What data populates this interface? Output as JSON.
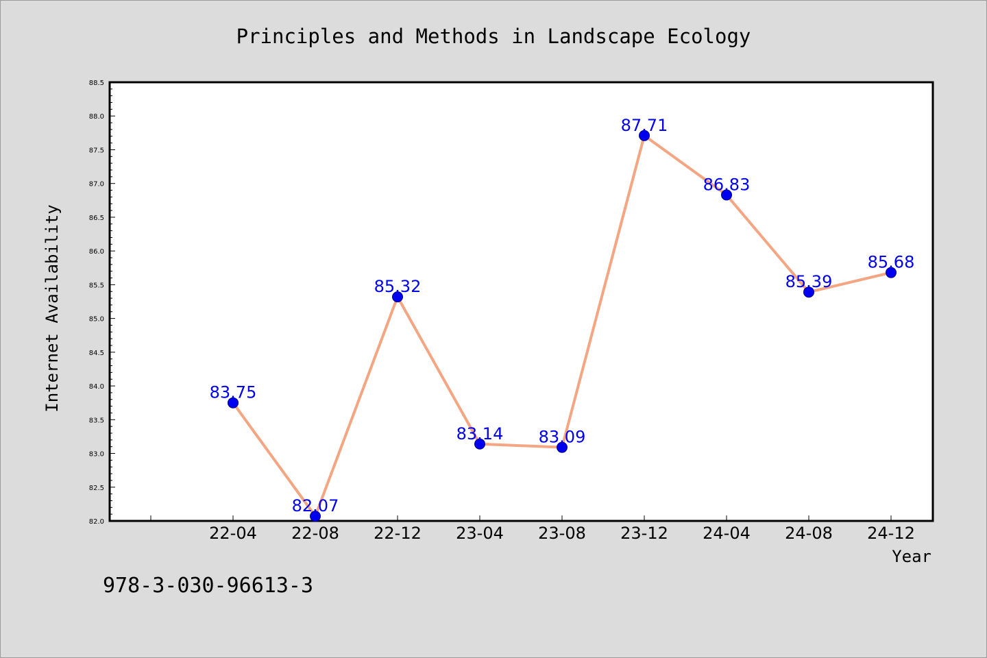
{
  "footer_code": "978-3-030-96613-3",
  "colors": {
    "background": "#dcdcdc",
    "plot_background": "#ffffff",
    "line": "#f4a582",
    "marker": "#0000ee",
    "data_label": "#0000ee"
  },
  "chart_data": {
    "type": "line",
    "title": "Principles and Methods in Landscape Ecology",
    "xlabel": "Year",
    "ylabel": "Internet Availability",
    "categories": [
      "22-04",
      "22-08",
      "22-12",
      "23-04",
      "23-08",
      "23-12",
      "24-04",
      "24-08",
      "24-12"
    ],
    "series": [
      {
        "values": [
          83.75,
          82.07,
          85.32,
          83.14,
          83.09,
          87.71,
          86.83,
          85.39,
          85.68
        ],
        "labels": [
          "83.75",
          "82.07",
          "85.32",
          "83.14",
          "83.09",
          "87.71",
          "86.83",
          "85.39",
          "85.68"
        ]
      }
    ],
    "ylim": [
      82.0,
      88.5
    ],
    "yticks": [
      "82.0",
      "82.5",
      "83.0",
      "83.5",
      "84.0",
      "84.5",
      "85.0",
      "85.5",
      "86.0",
      "86.5",
      "87.0",
      "87.5",
      "88.0",
      "88.5"
    ],
    "grid": false,
    "legend": "none"
  }
}
